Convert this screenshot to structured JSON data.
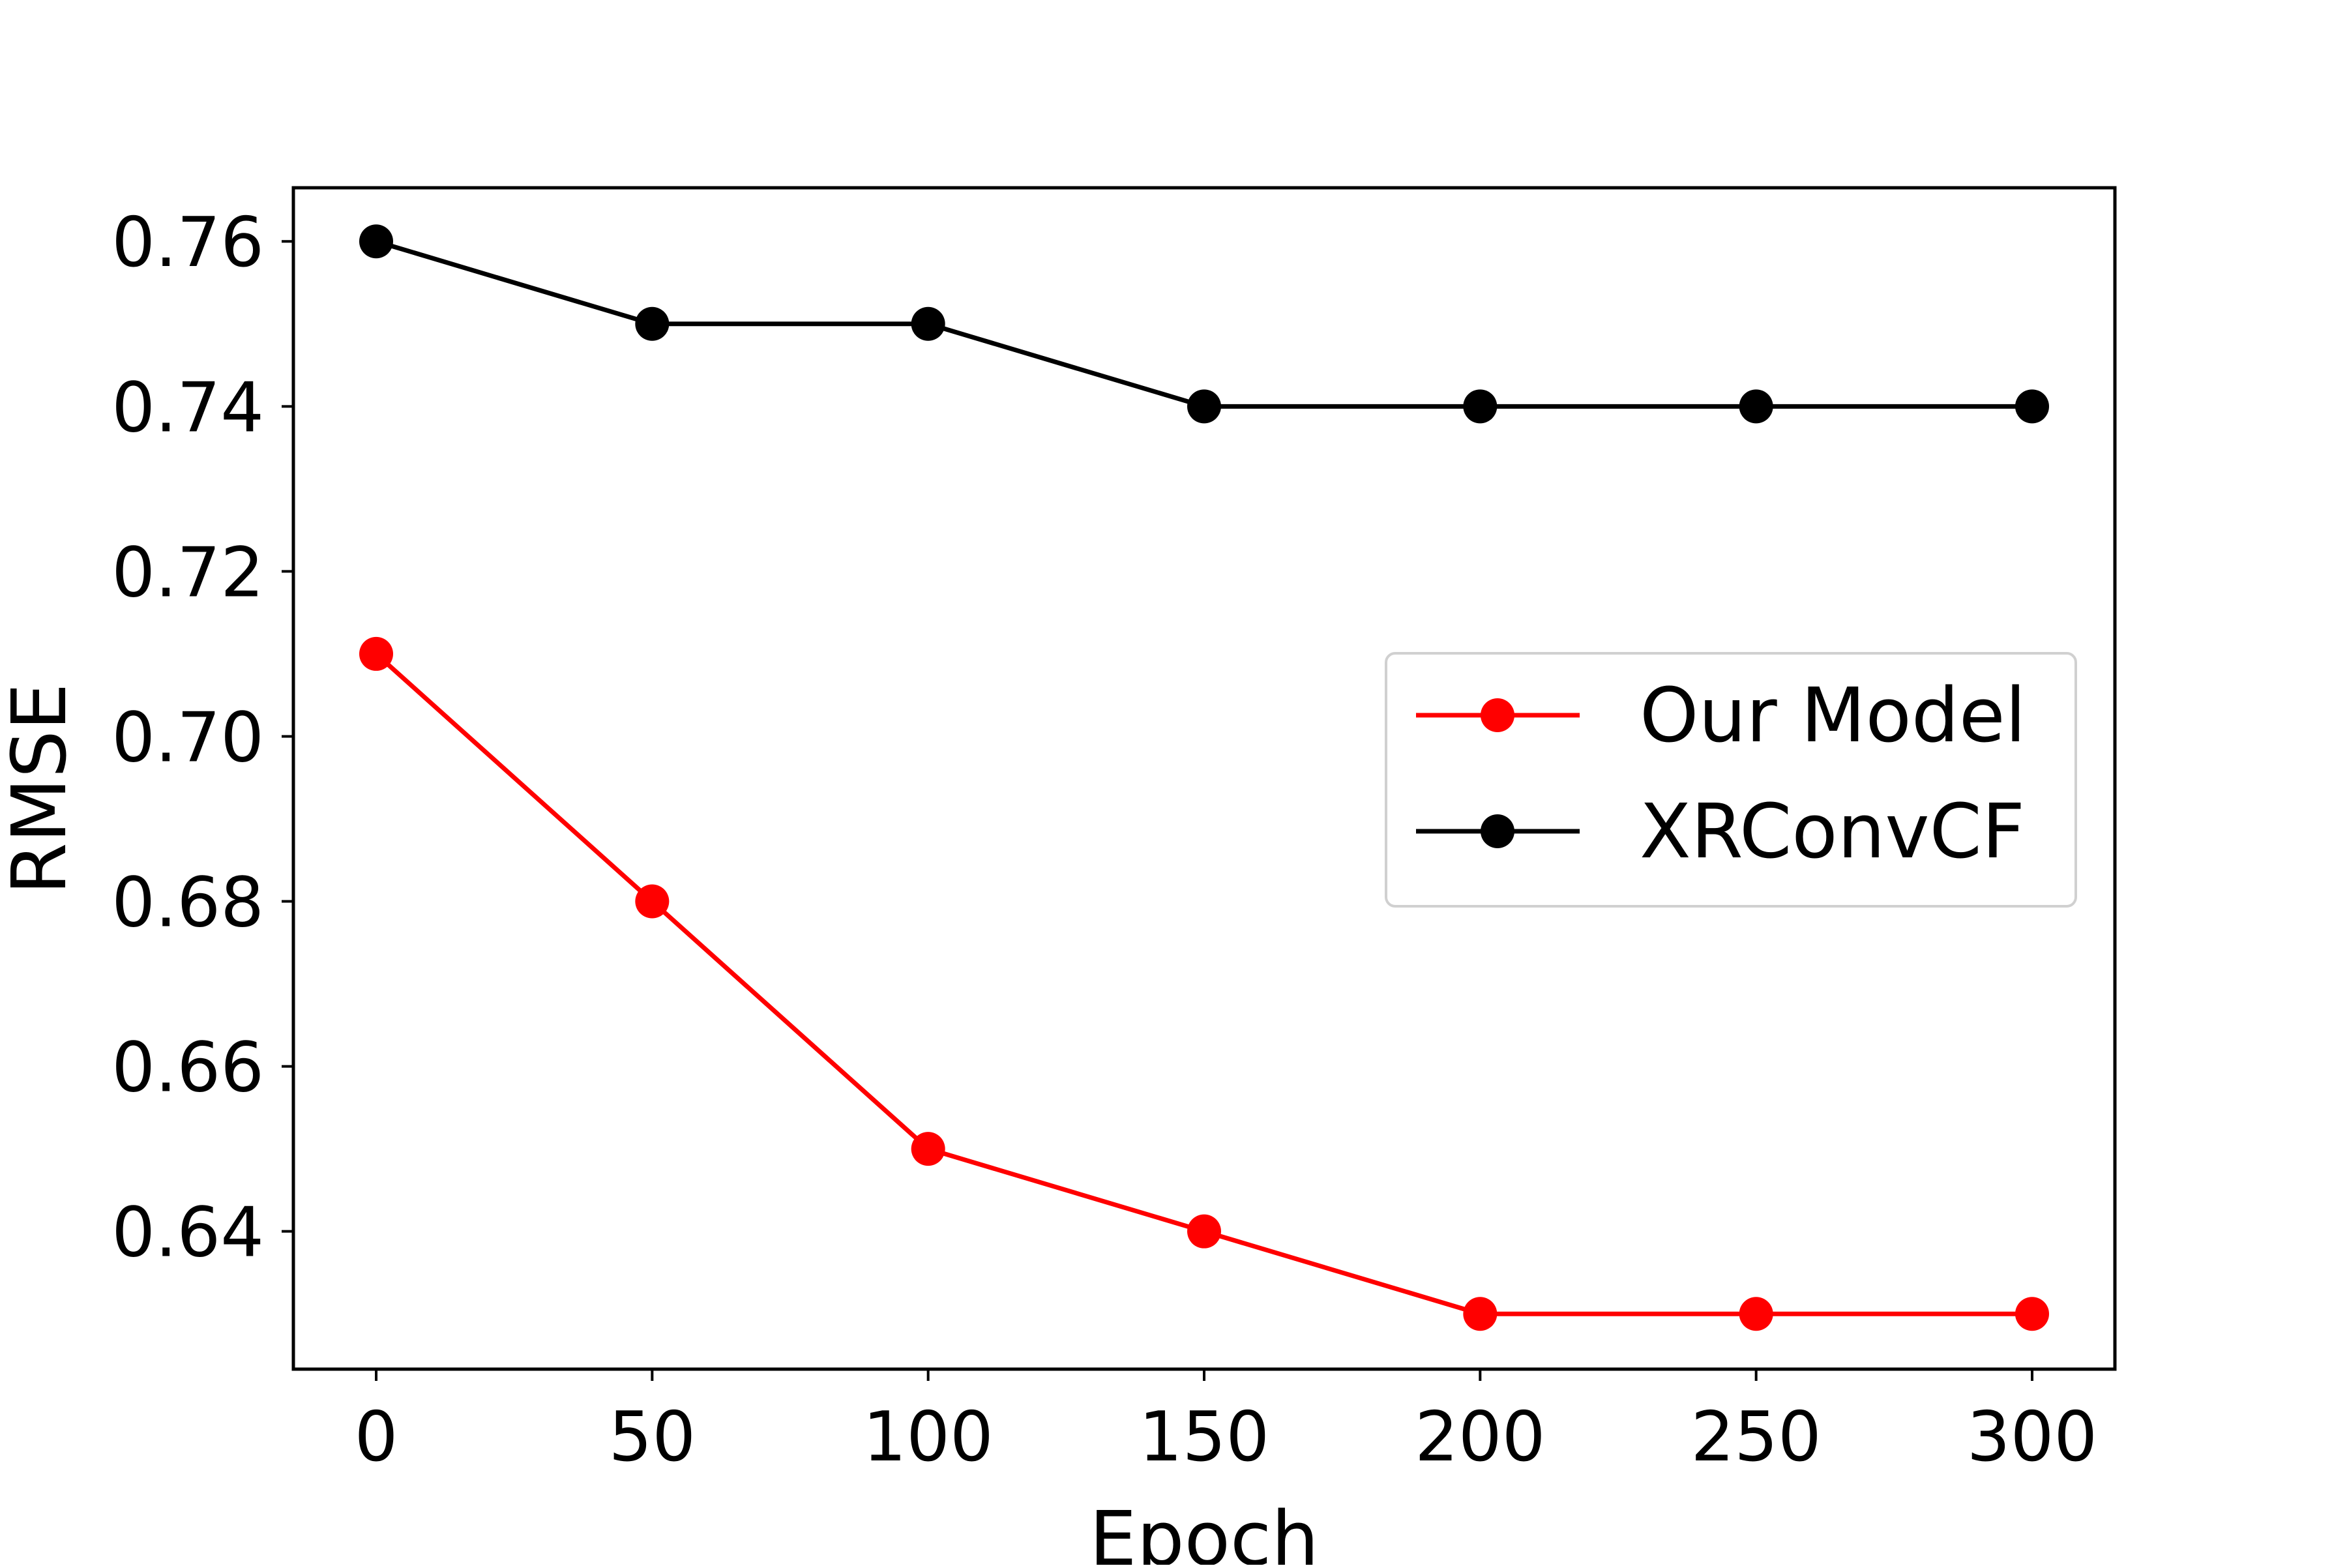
{
  "chart_data": {
    "type": "line",
    "title": "",
    "xlabel": "Epoch",
    "ylabel": "RMSE",
    "x": [
      0,
      50,
      100,
      150,
      200,
      250,
      300
    ],
    "xlim": [
      -15,
      315
    ],
    "ylim": [
      0.6233,
      0.7665
    ],
    "xticks": [
      0,
      50,
      100,
      150,
      200,
      250,
      300
    ],
    "yticks": [
      0.64,
      0.66,
      0.68,
      0.7,
      0.72,
      0.74,
      0.76
    ],
    "xtick_labels": [
      "0",
      "50",
      "100",
      "150",
      "200",
      "250",
      "300"
    ],
    "ytick_labels": [
      "0.64",
      "0.66",
      "0.68",
      "0.70",
      "0.72",
      "0.74",
      "0.76"
    ],
    "grid": false,
    "legend_position": "center-right",
    "series": [
      {
        "name": "Our Model",
        "color": "#ff0000",
        "marker": "circle",
        "values": [
          0.71,
          0.68,
          0.65,
          0.64,
          0.63,
          0.63,
          0.63
        ]
      },
      {
        "name": "XRConvCF",
        "color": "#000000",
        "marker": "circle",
        "values": [
          0.76,
          0.75,
          0.75,
          0.74,
          0.74,
          0.74,
          0.74
        ]
      }
    ]
  }
}
